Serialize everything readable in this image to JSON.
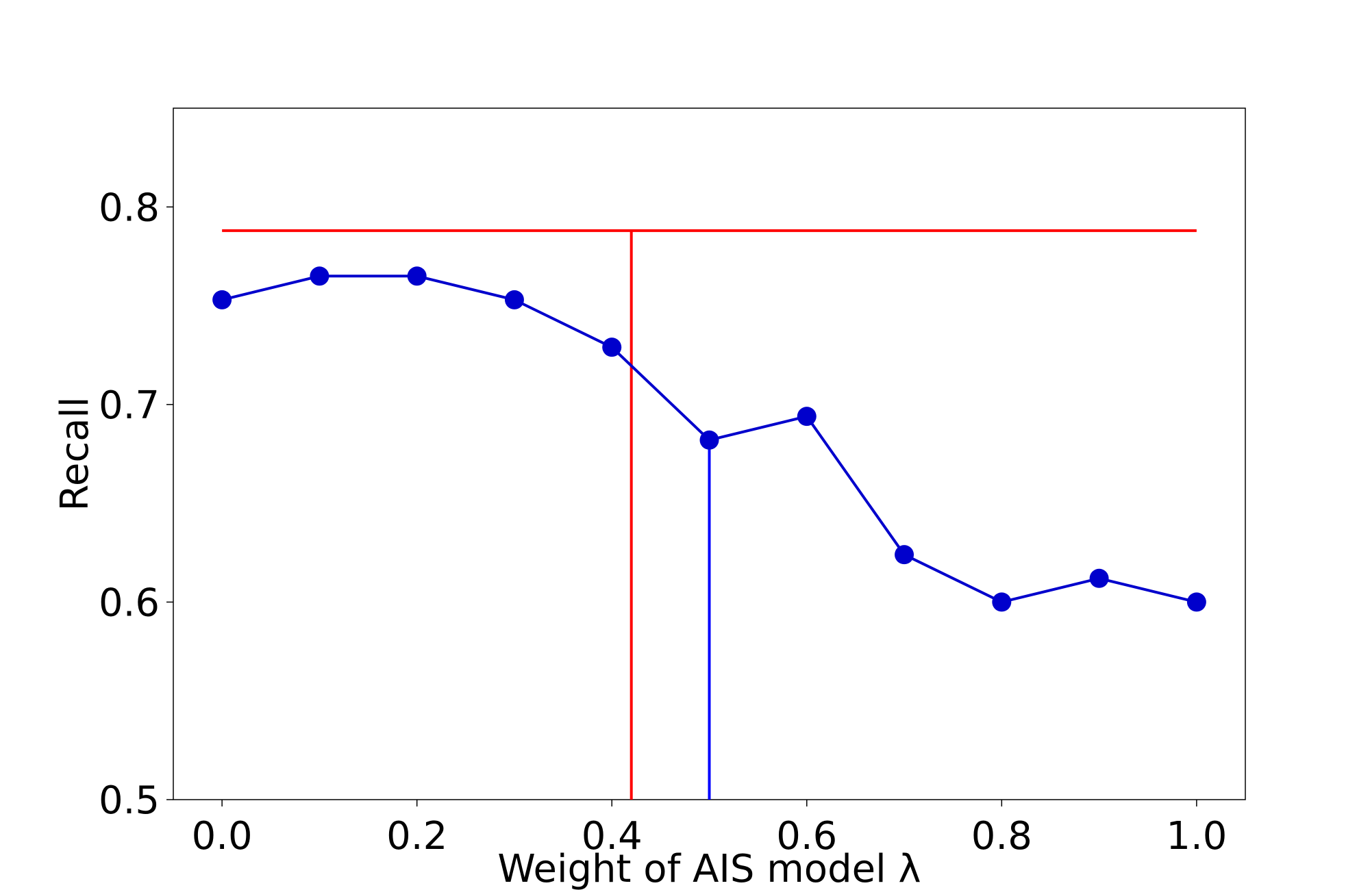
{
  "chart_data": {
    "type": "line",
    "xlabel": "Weight of AIS model λ",
    "ylabel": "Recall",
    "xlim": [
      -0.05,
      1.05
    ],
    "ylim": [
      0.5,
      0.85
    ],
    "xticks": [
      "0.0",
      "0.2",
      "0.4",
      "0.6",
      "0.8",
      "1.0"
    ],
    "yticks": [
      "0.5",
      "0.6",
      "0.7",
      "0.8"
    ],
    "grid": false,
    "series": [
      {
        "color": "#0000cc",
        "marker": "circle",
        "x": [
          0.0,
          0.1,
          0.2,
          0.3,
          0.4,
          0.5,
          0.6,
          0.7,
          0.8,
          0.9,
          1.0
        ],
        "y": [
          0.753,
          0.765,
          0.765,
          0.753,
          0.729,
          0.682,
          0.694,
          0.624,
          0.6,
          0.612,
          0.6
        ]
      }
    ],
    "reference_lines": [
      {
        "orientation": "horizontal",
        "y": 0.788,
        "x_from": 0.0,
        "x_to": 1.0,
        "color": "#ff0000"
      },
      {
        "orientation": "vertical",
        "x": 0.42,
        "y_from": 0.5,
        "y_to": 0.788,
        "color": "#ff0000"
      },
      {
        "orientation": "vertical",
        "x": 0.5,
        "y_from": 0.5,
        "y_to": 0.682,
        "color": "#0000ff"
      }
    ]
  }
}
